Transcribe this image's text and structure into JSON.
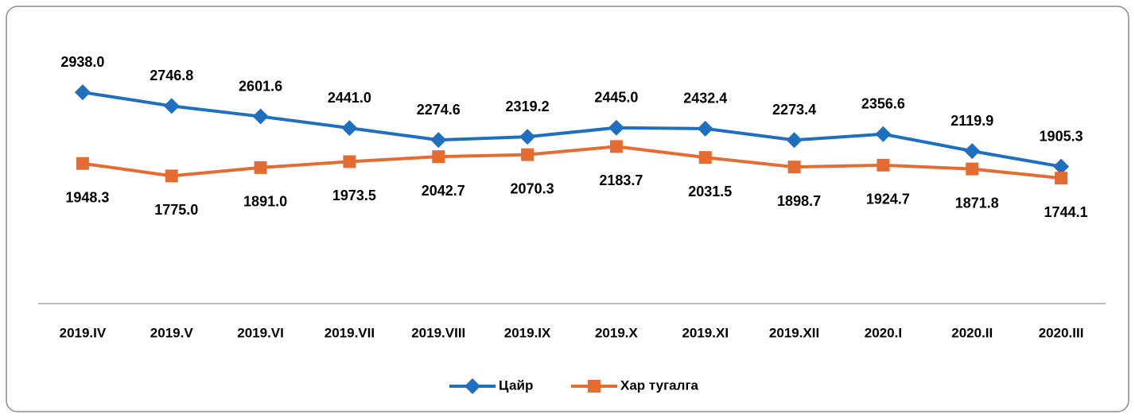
{
  "chart_data": {
    "type": "line",
    "categories": [
      "2019.IV",
      "2019.V",
      "2019.VI",
      "2019.VII",
      "2019.VIII",
      "2019.IX",
      "2019.X",
      "2019.XI",
      "2019.XII",
      "2020.I",
      "2020.II",
      "2020.III"
    ],
    "series": [
      {
        "name": "Цайр",
        "color": "#1f6fbf",
        "marker": "diamond",
        "values": [
          2938.0,
          2746.8,
          2601.6,
          2441.0,
          2274.6,
          2319.2,
          2445.0,
          2432.4,
          2273.4,
          2356.6,
          2119.9,
          1905.3
        ],
        "value_labels": [
          "2938.0",
          "2746.8",
          "2601.6",
          "2441.0",
          "2274.6",
          "2319.2",
          "2445.0",
          "2432.4",
          "2273.4",
          "2356.6",
          "2119.9",
          "1905.3"
        ]
      },
      {
        "name": "Хар тугалга",
        "color": "#e46c32",
        "marker": "square",
        "values": [
          1948.3,
          1775.0,
          1891.0,
          1973.5,
          2042.7,
          2070.3,
          2183.7,
          2031.5,
          1898.7,
          1924.7,
          1871.8,
          1744.1
        ],
        "value_labels": [
          "1948.3",
          "1775.0",
          "1891.0",
          "1973.5",
          "2042.7",
          "2070.3",
          "2183.7",
          "2031.5",
          "1898.7",
          "1924.7",
          "1871.8",
          "1744.1"
        ]
      }
    ],
    "ylim": [
      0,
      3000
    ],
    "legend": "bottom"
  }
}
